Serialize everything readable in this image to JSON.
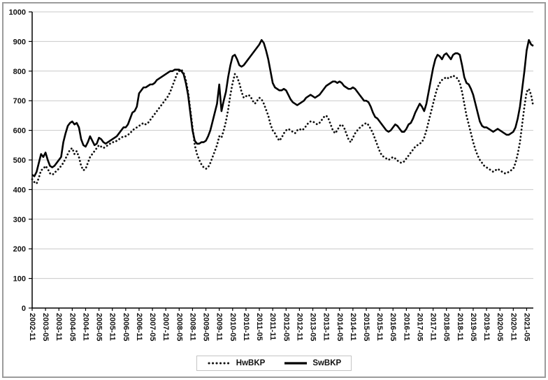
{
  "chart_data": {
    "type": "line",
    "title": "",
    "xlabel": "",
    "ylabel": "",
    "ylim": [
      0,
      1000
    ],
    "y_ticks": [
      0,
      100,
      200,
      300,
      400,
      500,
      600,
      700,
      800,
      900,
      1000
    ],
    "grid": "horizontal",
    "legend_position": "bottom-center",
    "x_tick_every": 6,
    "x_tick_labels": [
      "2002-11",
      "2003-05",
      "2003-11",
      "2004-05",
      "2004-11",
      "2005-05",
      "2005-11",
      "2006-05",
      "2006-11",
      "2007-05",
      "2007-11",
      "2008-05",
      "2008-11",
      "2009-05",
      "2009-11",
      "2010-05",
      "2010-11",
      "2011-05",
      "2011-11",
      "2012-05",
      "2012-11",
      "2013-05",
      "2013-11",
      "2014-05",
      "2014-11",
      "2015-05",
      "2015-11",
      "2016-05",
      "2016-11",
      "2017-05",
      "2017-11",
      "2018-05",
      "2018-11",
      "2019-05",
      "2019-11",
      "2020-05",
      "2020-11",
      "2021-05"
    ],
    "colors": {
      "line": "#111111",
      "grid": "#c9c9c9",
      "axis": "#000000"
    },
    "series": [
      {
        "name": "HwBKP",
        "style": "dotted",
        "color": "#111111",
        "width": 2.8,
        "values": [
          435,
          425,
          420,
          440,
          465,
          470,
          480,
          470,
          455,
          450,
          455,
          465,
          470,
          480,
          490,
          505,
          520,
          535,
          540,
          520,
          530,
          510,
          480,
          465,
          470,
          490,
          510,
          520,
          530,
          540,
          550,
          545,
          540,
          545,
          550,
          555,
          560,
          560,
          565,
          570,
          575,
          580,
          580,
          585,
          590,
          600,
          605,
          610,
          615,
          620,
          625,
          620,
          625,
          635,
          645,
          655,
          665,
          675,
          685,
          695,
          705,
          715,
          730,
          750,
          770,
          790,
          800,
          805,
          795,
          770,
          730,
          670,
          610,
          550,
          520,
          500,
          485,
          475,
          470,
          475,
          490,
          510,
          530,
          550,
          580,
          575,
          600,
          630,
          670,
          720,
          760,
          790,
          780,
          760,
          730,
          710,
          715,
          720,
          715,
          700,
          690,
          700,
          710,
          705,
          690,
          670,
          650,
          620,
          600,
          590,
          575,
          565,
          575,
          590,
          600,
          605,
          600,
          595,
          590,
          600,
          605,
          600,
          605,
          615,
          625,
          630,
          630,
          625,
          620,
          625,
          635,
          645,
          650,
          640,
          620,
          600,
          590,
          600,
          615,
          620,
          610,
          590,
          570,
          560,
          575,
          590,
          600,
          608,
          615,
          620,
          625,
          618,
          605,
          590,
          570,
          550,
          530,
          515,
          510,
          505,
          500,
          505,
          510,
          505,
          498,
          492,
          490,
          495,
          505,
          515,
          525,
          535,
          545,
          550,
          555,
          560,
          575,
          600,
          630,
          660,
          690,
          720,
          745,
          760,
          770,
          775,
          780,
          775,
          780,
          785,
          780,
          775,
          760,
          730,
          690,
          650,
          620,
          590,
          560,
          535,
          515,
          500,
          490,
          480,
          475,
          470,
          465,
          460,
          465,
          470,
          465,
          460,
          455,
          455,
          460,
          465,
          470,
          490,
          520,
          560,
          620,
          680,
          730,
          740,
          720,
          680
        ]
      },
      {
        "name": "SwBKP",
        "style": "solid",
        "color": "#000000",
        "width": 2.6,
        "values": [
          450,
          445,
          460,
          490,
          520,
          510,
          525,
          500,
          480,
          475,
          480,
          490,
          500,
          510,
          560,
          590,
          615,
          625,
          630,
          620,
          625,
          610,
          570,
          550,
          545,
          560,
          580,
          565,
          550,
          555,
          575,
          570,
          560,
          555,
          560,
          565,
          570,
          575,
          580,
          590,
          600,
          610,
          610,
          620,
          640,
          660,
          665,
          680,
          725,
          735,
          745,
          745,
          750,
          755,
          755,
          760,
          770,
          775,
          780,
          785,
          790,
          795,
          800,
          800,
          805,
          805,
          805,
          800,
          790,
          760,
          720,
          660,
          600,
          565,
          555,
          555,
          560,
          560,
          565,
          580,
          600,
          630,
          660,
          690,
          755,
          665,
          700,
          730,
          780,
          820,
          850,
          855,
          840,
          820,
          815,
          820,
          830,
          840,
          850,
          860,
          870,
          880,
          890,
          905,
          895,
          870,
          840,
          800,
          760,
          745,
          740,
          735,
          735,
          740,
          735,
          720,
          705,
          695,
          690,
          685,
          690,
          695,
          700,
          710,
          715,
          720,
          715,
          710,
          715,
          720,
          730,
          740,
          750,
          755,
          760,
          765,
          765,
          760,
          765,
          760,
          750,
          745,
          740,
          740,
          745,
          740,
          730,
          720,
          710,
          700,
          700,
          695,
          680,
          660,
          645,
          640,
          630,
          620,
          610,
          600,
          595,
          600,
          610,
          620,
          615,
          605,
          595,
          595,
          605,
          620,
          625,
          640,
          660,
          675,
          690,
          680,
          665,
          690,
          730,
          770,
          810,
          840,
          855,
          850,
          840,
          855,
          860,
          850,
          840,
          855,
          860,
          860,
          855,
          820,
          780,
          760,
          755,
          740,
          720,
          690,
          660,
          630,
          615,
          610,
          610,
          605,
          600,
          595,
          600,
          605,
          600,
          595,
          590,
          585,
          585,
          590,
          595,
          610,
          640,
          680,
          740,
          800,
          870,
          905,
          890,
          885
        ]
      }
    ]
  }
}
